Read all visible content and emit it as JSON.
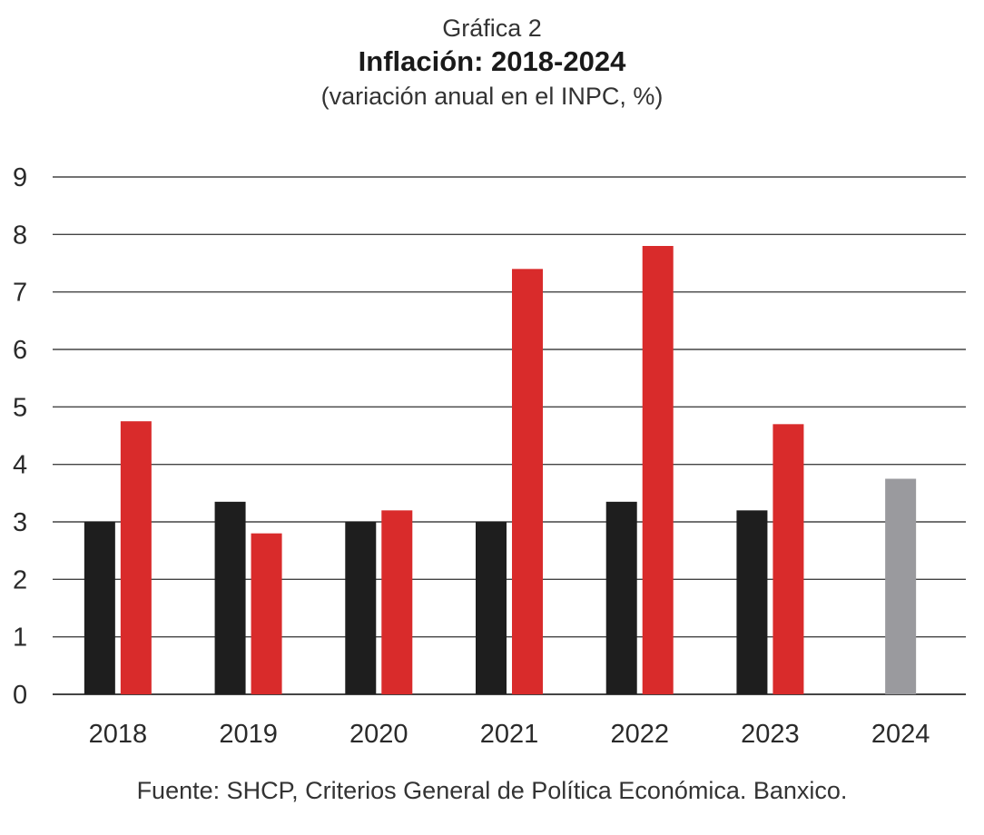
{
  "header": {
    "label": "Gráfica 2",
    "title": "Inflación: 2018-2024",
    "subtitle": "(variación anual en el INPC, %)"
  },
  "source": "Fuente: SHCP, Criterios General de Política Económica. Banxico.",
  "colors": {
    "series_a": "#1e1e1e",
    "series_b": "#d92b2b",
    "series_c": "#9a9a9e",
    "grid": "#444444"
  },
  "chart_data": {
    "type": "bar",
    "title": "Inflación: 2018-2024",
    "subtitle": "(variación anual en el INPC, %)",
    "xlabel": "",
    "ylabel": "",
    "categories": [
      "2018",
      "2019",
      "2020",
      "2021",
      "2022",
      "2023",
      "2024"
    ],
    "ylim": [
      0,
      9
    ],
    "yticks": [
      0,
      1,
      2,
      3,
      4,
      5,
      6,
      7,
      8,
      9
    ],
    "grid": true,
    "legend": "none",
    "series": [
      {
        "values": [
          3.0,
          3.35,
          3.0,
          3.0,
          3.35,
          3.2,
          null
        ],
        "color": "#1e1e1e"
      },
      {
        "values": [
          4.75,
          2.8,
          3.2,
          7.4,
          7.8,
          4.7,
          null
        ],
        "color": "#d92b2b"
      },
      {
        "values": [
          null,
          null,
          null,
          null,
          null,
          null,
          3.75
        ],
        "color": "#9a9a9e"
      }
    ]
  }
}
